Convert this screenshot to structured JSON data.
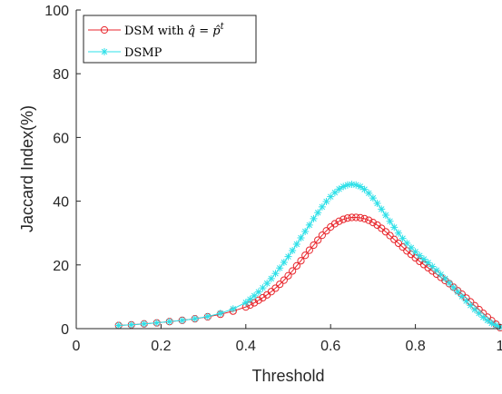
{
  "chart_data": {
    "type": "line",
    "xlabel": "Threshold",
    "ylabel": "Jaccard Index(%)",
    "xlim": [
      0,
      1
    ],
    "ylim": [
      0,
      100
    ],
    "xticks": [
      0,
      0.2,
      0.4,
      0.6,
      0.8,
      1
    ],
    "xtick_labels": [
      "0",
      "0.2",
      "0.4",
      "0.6",
      "0.8",
      "1"
    ],
    "yticks": [
      0,
      20,
      40,
      60,
      80,
      100
    ],
    "ytick_labels": [
      "0",
      "20",
      "40",
      "60",
      "80",
      "100"
    ],
    "grid": false,
    "legend_position": "top-left",
    "series": [
      {
        "name": "DSM with q̂ = p̂ᵗ",
        "color": "#e8262c",
        "marker": "circle",
        "x": [
          0.1,
          0.13,
          0.16,
          0.19,
          0.22,
          0.25,
          0.28,
          0.31,
          0.34,
          0.37,
          0.4,
          0.41,
          0.42,
          0.43,
          0.44,
          0.45,
          0.46,
          0.47,
          0.48,
          0.49,
          0.5,
          0.51,
          0.52,
          0.53,
          0.54,
          0.55,
          0.56,
          0.57,
          0.58,
          0.59,
          0.6,
          0.61,
          0.62,
          0.63,
          0.64,
          0.65,
          0.66,
          0.67,
          0.68,
          0.69,
          0.7,
          0.71,
          0.72,
          0.73,
          0.74,
          0.75,
          0.76,
          0.77,
          0.78,
          0.79,
          0.8,
          0.81,
          0.82,
          0.83,
          0.84,
          0.85,
          0.86,
          0.87,
          0.88,
          0.89,
          0.9,
          0.91,
          0.92,
          0.93,
          0.94,
          0.95,
          0.96,
          0.97,
          0.98,
          0.99,
          1.0
        ],
        "y": [
          1.0,
          1.2,
          1.5,
          1.8,
          2.2,
          2.6,
          3.1,
          3.7,
          4.5,
          5.5,
          6.8,
          7.4,
          8.1,
          8.9,
          9.7,
          10.6,
          11.6,
          12.7,
          13.9,
          15.2,
          16.6,
          18.1,
          19.7,
          21.3,
          23.0,
          24.6,
          26.2,
          27.8,
          29.3,
          30.7,
          31.9,
          32.9,
          33.7,
          34.3,
          34.7,
          34.9,
          34.9,
          34.8,
          34.5,
          34.0,
          33.3,
          32.5,
          31.5,
          30.4,
          29.2,
          28.0,
          26.8,
          25.6,
          24.4,
          23.3,
          22.2,
          21.1,
          20.1,
          19.1,
          18.1,
          17.1,
          16.1,
          15.1,
          14.1,
          13.0,
          11.9,
          10.8,
          9.6,
          8.4,
          7.2,
          6.0,
          4.8,
          3.6,
          2.5,
          1.4,
          0.3
        ]
      },
      {
        "name": "DSMP",
        "color": "#2ee0e8",
        "marker": "asterisk",
        "x": [
          0.1,
          0.13,
          0.16,
          0.19,
          0.22,
          0.25,
          0.28,
          0.31,
          0.34,
          0.37,
          0.4,
          0.41,
          0.42,
          0.43,
          0.44,
          0.45,
          0.46,
          0.47,
          0.48,
          0.49,
          0.5,
          0.51,
          0.52,
          0.53,
          0.54,
          0.55,
          0.56,
          0.57,
          0.58,
          0.59,
          0.6,
          0.61,
          0.62,
          0.63,
          0.64,
          0.65,
          0.66,
          0.67,
          0.68,
          0.69,
          0.7,
          0.71,
          0.72,
          0.73,
          0.74,
          0.75,
          0.76,
          0.77,
          0.78,
          0.79,
          0.8,
          0.81,
          0.82,
          0.83,
          0.84,
          0.85,
          0.86,
          0.87,
          0.88,
          0.89,
          0.9,
          0.91,
          0.92,
          0.93,
          0.94,
          0.95,
          0.96,
          0.97,
          0.98,
          0.99,
          1.0
        ],
        "y": [
          1.0,
          1.2,
          1.5,
          1.8,
          2.2,
          2.6,
          3.1,
          3.8,
          4.8,
          6.2,
          8.2,
          9.2,
          10.3,
          11.5,
          12.8,
          14.2,
          15.7,
          17.3,
          19.0,
          20.8,
          22.6,
          24.5,
          26.5,
          28.5,
          30.5,
          32.5,
          34.5,
          36.4,
          38.2,
          39.9,
          41.4,
          42.7,
          43.8,
          44.6,
          45.1,
          45.3,
          45.1,
          44.6,
          43.7,
          42.5,
          41.0,
          39.3,
          37.5,
          35.6,
          33.7,
          31.8,
          30.0,
          28.3,
          26.8,
          25.4,
          24.1,
          22.9,
          21.8,
          20.7,
          19.5,
          18.3,
          17.0,
          15.7,
          14.3,
          12.9,
          11.5,
          10.1,
          8.7,
          7.3,
          6.0,
          4.8,
          3.6,
          2.6,
          1.7,
          1.0,
          0.5
        ]
      }
    ]
  }
}
